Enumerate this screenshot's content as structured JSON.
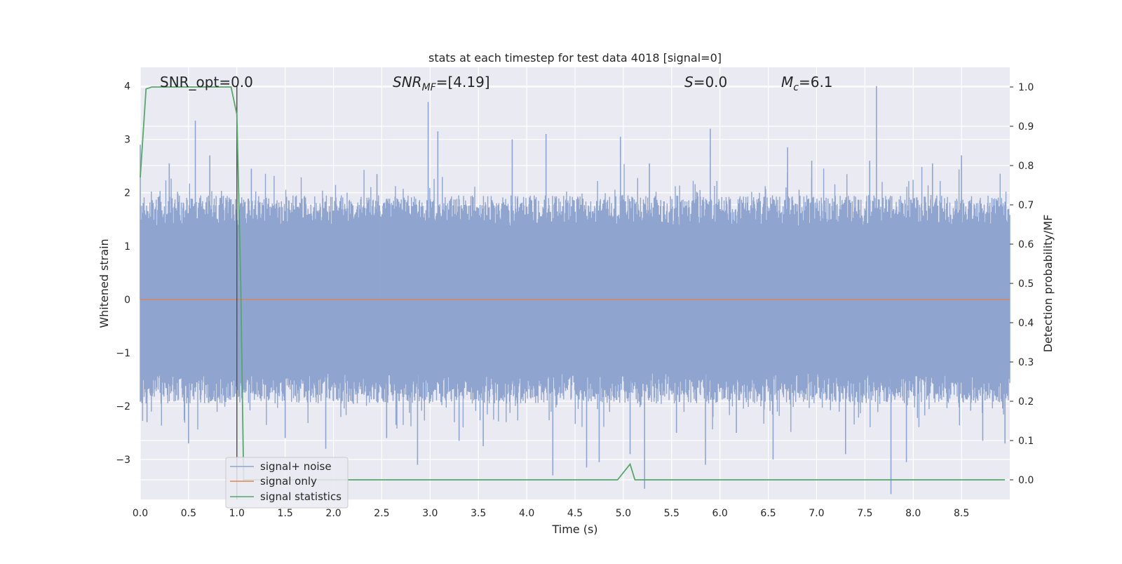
{
  "chart_data": {
    "type": "line",
    "title": "stats at each timestep for test data 4018 [signal=0]",
    "xlabel": "Time (s)",
    "ylabel": "Whitened strain",
    "y2label": "Detection probability/MF",
    "xlim": [
      0.0,
      9.0
    ],
    "ylim": [
      -3.75,
      4.35
    ],
    "y2lim": [
      -0.05,
      1.05
    ],
    "xticks": [
      "0.0",
      "0.5",
      "1.0",
      "1.5",
      "2.0",
      "2.5",
      "3.0",
      "3.5",
      "4.0",
      "4.5",
      "5.0",
      "5.5",
      "6.0",
      "6.5",
      "7.0",
      "7.5",
      "8.0",
      "8.5"
    ],
    "yticks": [
      "4",
      "3",
      "2",
      "1",
      "0",
      "−1",
      "−2",
      "−3"
    ],
    "y2ticks": [
      "1.0",
      "0.9",
      "0.8",
      "0.7",
      "0.6",
      "0.5",
      "0.4",
      "0.3",
      "0.2",
      "0.1",
      "0.0"
    ],
    "grid": true,
    "legend_position": "lower-left",
    "vline_x": 1.0,
    "annotations": {
      "snr_opt": "SNR_opt=0.0",
      "snr_mf_main": "SNR",
      "snr_mf_sub": "MF",
      "snr_mf_rest": "=[4.19]",
      "s_var": "S",
      "s_rest": "=0.0",
      "mc_main": "M",
      "mc_sub": "c",
      "mc_rest": "=6.1"
    },
    "series": [
      {
        "name": "signal+ noise",
        "color": "#8fa5cf",
        "axis": "left",
        "envelope_abs": 1.95,
        "peaks": [
          [
            0.0,
            2.9
          ],
          [
            0.07,
            -2.3
          ],
          [
            0.3,
            2.55
          ],
          [
            0.5,
            -2.7
          ],
          [
            0.57,
            3.35
          ],
          [
            0.72,
            2.7
          ],
          [
            1.15,
            2.45
          ],
          [
            1.5,
            -2.6
          ],
          [
            1.92,
            -2.8
          ],
          [
            2.45,
            2.35
          ],
          [
            2.55,
            -2.6
          ],
          [
            2.87,
            -3.1
          ],
          [
            2.98,
            3.7
          ],
          [
            3.08,
            3.15
          ],
          [
            3.3,
            -2.65
          ],
          [
            3.55,
            -2.75
          ],
          [
            3.85,
            3.0
          ],
          [
            4.2,
            3.1
          ],
          [
            4.27,
            -3.3
          ],
          [
            4.62,
            -3.15
          ],
          [
            4.75,
            -3.05
          ],
          [
            4.97,
            3.05
          ],
          [
            5.07,
            -2.9
          ],
          [
            5.22,
            -3.55
          ],
          [
            5.27,
            2.55
          ],
          [
            5.55,
            -2.5
          ],
          [
            5.85,
            -3.1
          ],
          [
            5.9,
            3.2
          ],
          [
            6.17,
            -2.5
          ],
          [
            6.55,
            -3.0
          ],
          [
            6.7,
            2.85
          ],
          [
            6.95,
            2.6
          ],
          [
            7.3,
            -2.9
          ],
          [
            7.55,
            2.6
          ],
          [
            7.62,
            4.0
          ],
          [
            7.77,
            -3.65
          ],
          [
            7.93,
            -3.05
          ],
          [
            8.2,
            2.55
          ],
          [
            8.5,
            2.7
          ],
          [
            8.72,
            -2.65
          ],
          [
            8.95,
            -2.7
          ]
        ]
      },
      {
        "name": "signal only",
        "color": "#dd8452",
        "axis": "left",
        "y": [
          [
            0.0,
            0.0
          ],
          [
            9.0,
            0.0
          ]
        ]
      },
      {
        "name": "signal statistics",
        "color": "#55a868",
        "axis": "right",
        "y": [
          [
            0.0,
            0.77
          ],
          [
            0.06,
            0.995
          ],
          [
            0.12,
            1.0
          ],
          [
            0.5,
            1.0
          ],
          [
            0.94,
            1.0
          ],
          [
            1.0,
            0.93
          ],
          [
            1.04,
            0.5
          ],
          [
            1.07,
            0.0
          ],
          [
            4.94,
            0.0
          ],
          [
            5.07,
            0.04
          ],
          [
            5.12,
            0.0
          ],
          [
            6.4,
            0.0
          ],
          [
            8.95,
            0.0
          ]
        ]
      }
    ]
  }
}
